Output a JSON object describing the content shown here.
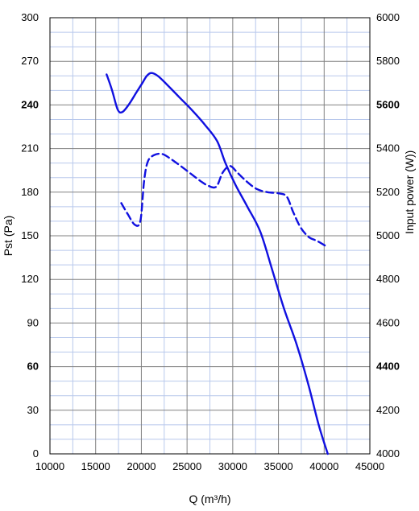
{
  "chart_data": {
    "type": "line",
    "xlabel": "Q (m³/h)",
    "ylabel_left": "Pst (Pa)",
    "ylabel_right": "Input power  (W))",
    "xlim": [
      10000,
      45000
    ],
    "ylim_left": [
      0,
      300
    ],
    "ylim_right": [
      4000,
      6000
    ],
    "x_ticks": [
      "10000",
      "15000",
      "20000",
      "25000",
      "30000",
      "35000",
      "40000",
      "45000"
    ],
    "y_left_ticks": [
      "0",
      "30",
      "60",
      "90",
      "120",
      "150",
      "180",
      "210",
      "240",
      "270",
      "300"
    ],
    "y_right_ticks": [
      "4000",
      "4200",
      "4400",
      "4600",
      "4800",
      "5000",
      "5200",
      "5400",
      "5600",
      "5800",
      "6000"
    ],
    "bold_left_ticks": [
      "60",
      "240"
    ],
    "bold_right_ticks": [
      "4400",
      "5600"
    ],
    "grid": true,
    "legend": "none",
    "colors": {
      "line": "#1010e0",
      "grid_major": "#808080",
      "grid_minor": "#b8c8ec"
    },
    "series": [
      {
        "axis": "left",
        "style": "solid",
        "x": [
          16200,
          16800,
          17400,
          17900,
          18600,
          19400,
          20100,
          20600,
          21100,
          21800,
          22800,
          24200,
          25600,
          27000,
          28300,
          29200,
          30300,
          31600,
          33000,
          34300,
          35600,
          37000,
          38300,
          39400,
          40400
        ],
        "y": [
          261,
          250,
          237,
          235,
          240,
          248,
          255,
          260,
          262,
          260,
          254,
          245,
          236,
          226,
          215,
          200,
          185,
          170,
          153,
          127,
          100,
          75,
          47,
          20,
          0
        ]
      },
      {
        "axis": "right",
        "style": "dashed",
        "x": [
          17800,
          18500,
          19300,
          19900,
          20300,
          20700,
          21400,
          22300,
          23300,
          24300,
          25400,
          26500,
          27300,
          28200,
          28900,
          29700,
          30500,
          31500,
          32600,
          33800,
          35000,
          35900,
          36600,
          37400,
          38300,
          39300,
          40300
        ],
        "y": [
          5150,
          5100,
          5050,
          5070,
          5250,
          5340,
          5370,
          5375,
          5350,
          5320,
          5285,
          5250,
          5230,
          5225,
          5290,
          5320,
          5290,
          5250,
          5215,
          5200,
          5195,
          5180,
          5110,
          5040,
          4995,
          4975,
          4950
        ]
      }
    ]
  }
}
